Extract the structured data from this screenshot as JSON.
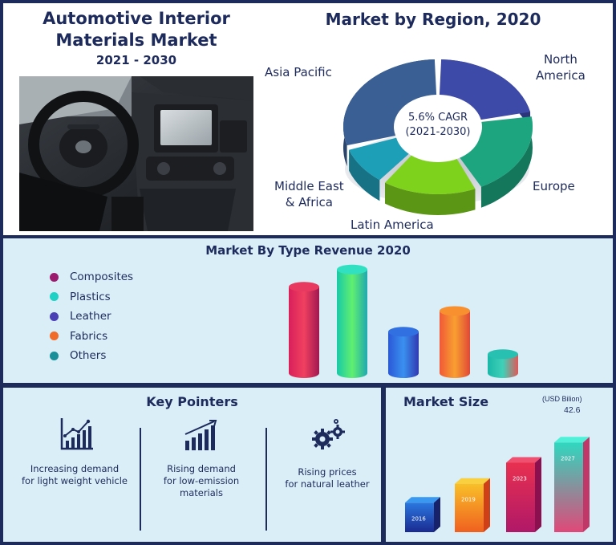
{
  "header": {
    "title_line1": "Automotive Interior",
    "title_line2": "Materials Market",
    "years": "2021 - 2030"
  },
  "region": {
    "title": "Market by Region, 2020",
    "center_line1": "5.6% CAGR",
    "center_line2": "(2021-2030)",
    "labels": {
      "asia_pacific": "Asia Pacific",
      "north_america_1": "North",
      "north_america_2": "America",
      "europe": "Europe",
      "latin_america": "Latin America",
      "mea_1": "Middle East",
      "mea_2": "& Africa"
    }
  },
  "type_section": {
    "title": "Market By Type Revenue 2020",
    "legend": [
      "Composites",
      "Plastics",
      "Leather",
      "Fabrics",
      "Others"
    ]
  },
  "key_pointers": {
    "title": "Key Pointers",
    "items": [
      {
        "line1": "Increasing demand",
        "line2": "for light weight vehicle",
        "line3": "",
        "icon": "growth-chart-icon"
      },
      {
        "line1": "Rising demand",
        "line2": "for low-emission",
        "line3": "materials",
        "icon": "bar-chart-icon"
      },
      {
        "line1": "Rising prices",
        "line2": "for natural leather",
        "line3": "",
        "icon": "gears-icon"
      }
    ]
  },
  "market_size": {
    "title": "Market Size",
    "unit": "(USD Bilion)",
    "value_label": "42.6"
  },
  "colors": {
    "navy": "#1d2a5c",
    "panel": "#d9eef7",
    "composites": "#9c1a6e",
    "plastics": "#1fd1c4",
    "leather": "#4a3fb5",
    "fabrics": "#f06a2a",
    "others": "#1a8f9a"
  },
  "chart_data": [
    {
      "type": "pie",
      "title": "Market by Region, 2020",
      "categories": [
        "North America",
        "Europe",
        "Latin America",
        "Middle East & Africa",
        "Asia Pacific"
      ],
      "values": [
        22,
        21,
        17,
        10,
        30
      ],
      "colors": [
        "#3d4aa8",
        "#1ca57f",
        "#7fd21c",
        "#1e9fb8",
        "#3a5f94"
      ]
    },
    {
      "type": "bar",
      "title": "Market By Type Revenue 2020",
      "categories": [
        "Composites",
        "Plastics",
        "Leather",
        "Fabrics",
        "Others"
      ],
      "values": [
        100,
        120,
        48,
        72,
        22
      ],
      "ylim": [
        0,
        130
      ]
    },
    {
      "type": "bar",
      "title": "Market Size",
      "categories": [
        "2016",
        "2019",
        "2023",
        "2027"
      ],
      "values": [
        14,
        23,
        33,
        42.6
      ],
      "ylim": [
        0,
        45
      ]
    }
  ]
}
